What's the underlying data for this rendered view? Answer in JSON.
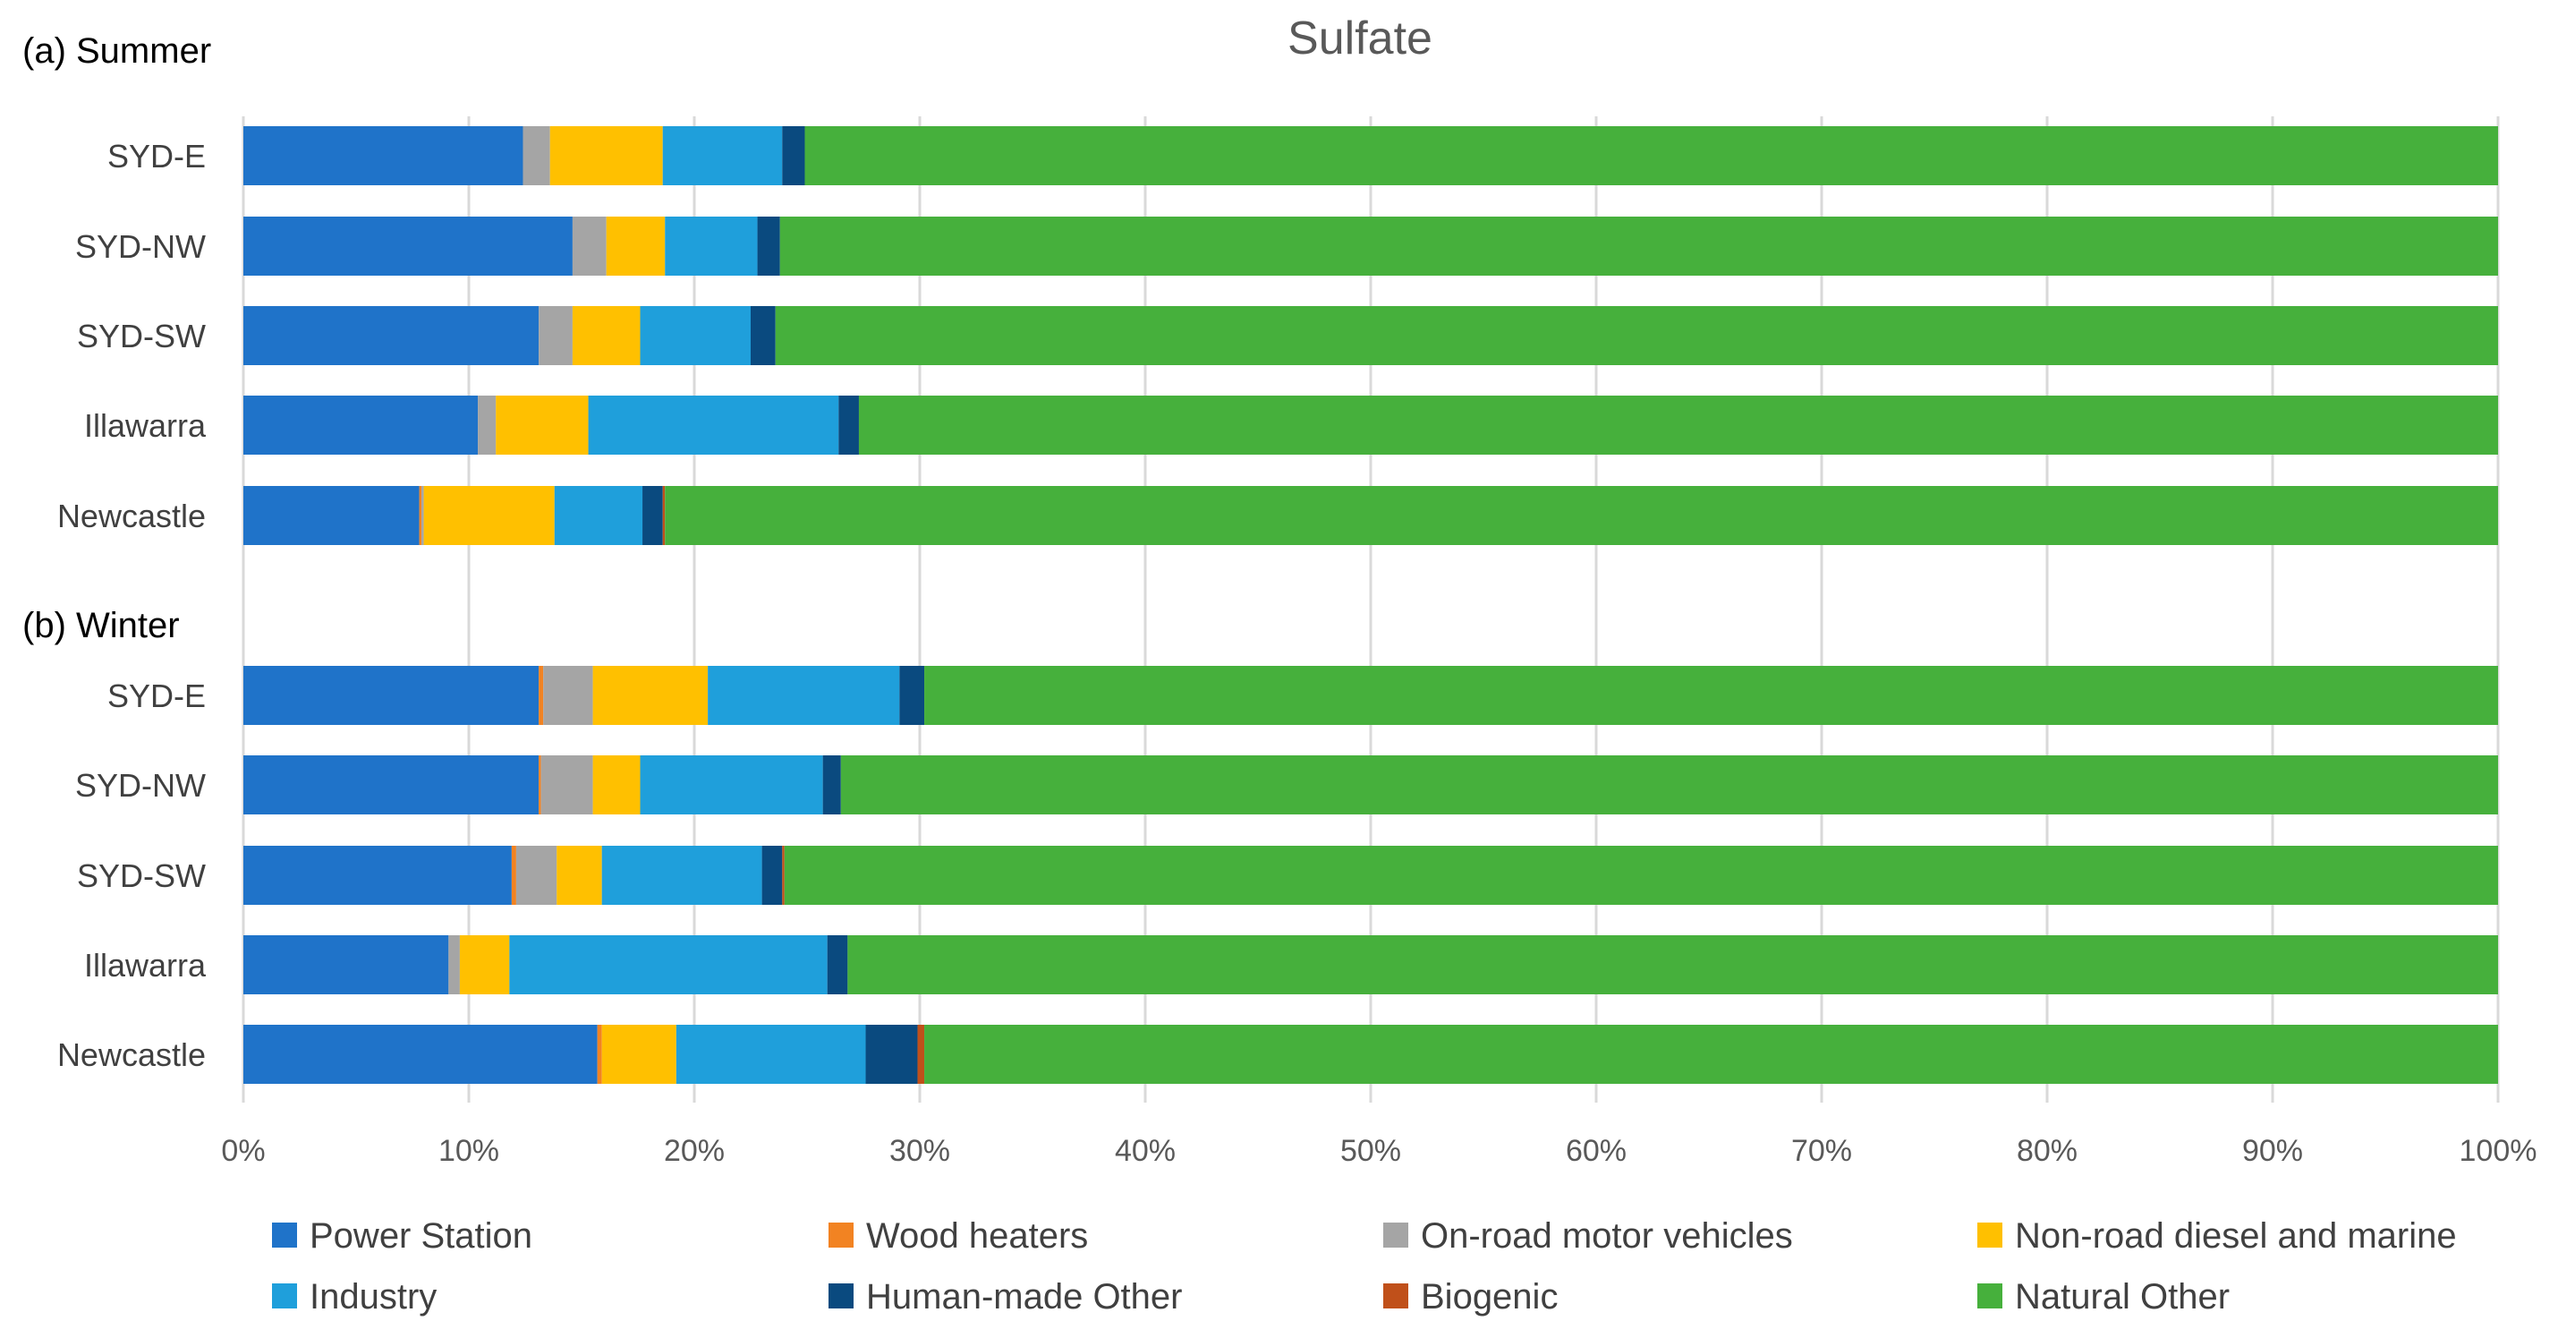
{
  "chart_data": {
    "type": "bar",
    "orientation": "horizontal",
    "stacked": "percent",
    "title": "Sulfate",
    "groups": [
      {
        "label": "(a) Summer",
        "categories": [
          "SYD-E",
          "SYD-NW",
          "SYD-SW",
          "Illawarra",
          "Newcastle"
        ],
        "series": [
          {
            "name": "Power Station",
            "values": [
              12.4,
              14.6,
              13.1,
              10.4,
              7.8
            ]
          },
          {
            "name": "Wood heaters",
            "values": [
              0.0,
              0.0,
              0.0,
              0.0,
              0.1
            ]
          },
          {
            "name": "On-road motor vehicles",
            "values": [
              1.2,
              1.5,
              1.5,
              0.8,
              0.1
            ]
          },
          {
            "name": "Non-road diesel and marine",
            "values": [
              5.0,
              2.6,
              3.0,
              4.1,
              5.8
            ]
          },
          {
            "name": "Industry",
            "values": [
              5.3,
              4.1,
              4.9,
              11.1,
              3.9
            ]
          },
          {
            "name": "Human-made Other",
            "values": [
              1.0,
              1.0,
              1.1,
              0.9,
              0.9
            ]
          },
          {
            "name": "Biogenic",
            "values": [
              0.0,
              0.0,
              0.0,
              0.0,
              0.1
            ]
          },
          {
            "name": "Natural Other",
            "values": [
              75.1,
              76.2,
              76.4,
              72.7,
              81.3
            ]
          }
        ]
      },
      {
        "label": "(b) Winter",
        "categories": [
          "SYD-E",
          "SYD-NW",
          "SYD-SW",
          "Illawarra",
          "Newcastle"
        ],
        "series": [
          {
            "name": "Power Station",
            "values": [
              13.1,
              13.1,
              11.9,
              9.1,
              15.7
            ]
          },
          {
            "name": "Wood heaters",
            "values": [
              0.2,
              0.1,
              0.2,
              0.0,
              0.2
            ]
          },
          {
            "name": "On-road motor vehicles",
            "values": [
              2.2,
              2.3,
              1.8,
              0.5,
              0.0
            ]
          },
          {
            "name": "Non-road diesel and marine",
            "values": [
              5.1,
              2.1,
              2.0,
              2.2,
              3.3
            ]
          },
          {
            "name": "Industry",
            "values": [
              8.5,
              8.1,
              7.1,
              14.1,
              8.4
            ]
          },
          {
            "name": "Human-made Other",
            "values": [
              1.1,
              0.8,
              0.9,
              0.9,
              2.3
            ]
          },
          {
            "name": "Biogenic",
            "values": [
              0.0,
              0.0,
              0.1,
              0.0,
              0.3
            ]
          },
          {
            "name": "Natural Other",
            "values": [
              69.8,
              73.5,
              76.0,
              73.2,
              69.8
            ]
          }
        ]
      }
    ],
    "colors": {
      "Power Station": "#1f73c9",
      "Wood heaters": "#f28322",
      "On-road motor vehicles": "#a5a5a5",
      "Non-road diesel and marine": "#ffc000",
      "Industry": "#1f9fdb",
      "Human-made Other": "#0a4a7f",
      "Biogenic": "#c0501a",
      "Natural Other": "#46b03c"
    },
    "xlim": [
      0,
      100
    ],
    "xticks": [
      "0%",
      "10%",
      "20%",
      "30%",
      "40%",
      "50%",
      "60%",
      "70%",
      "80%",
      "90%",
      "100%"
    ],
    "grid": true,
    "legend": {
      "position": "bottom",
      "items": [
        "Power Station",
        "Wood heaters",
        "On-road motor vehicles",
        "Non-road diesel and marine",
        "Industry",
        "Human-made Other",
        "Biogenic",
        "Natural Other"
      ]
    }
  }
}
